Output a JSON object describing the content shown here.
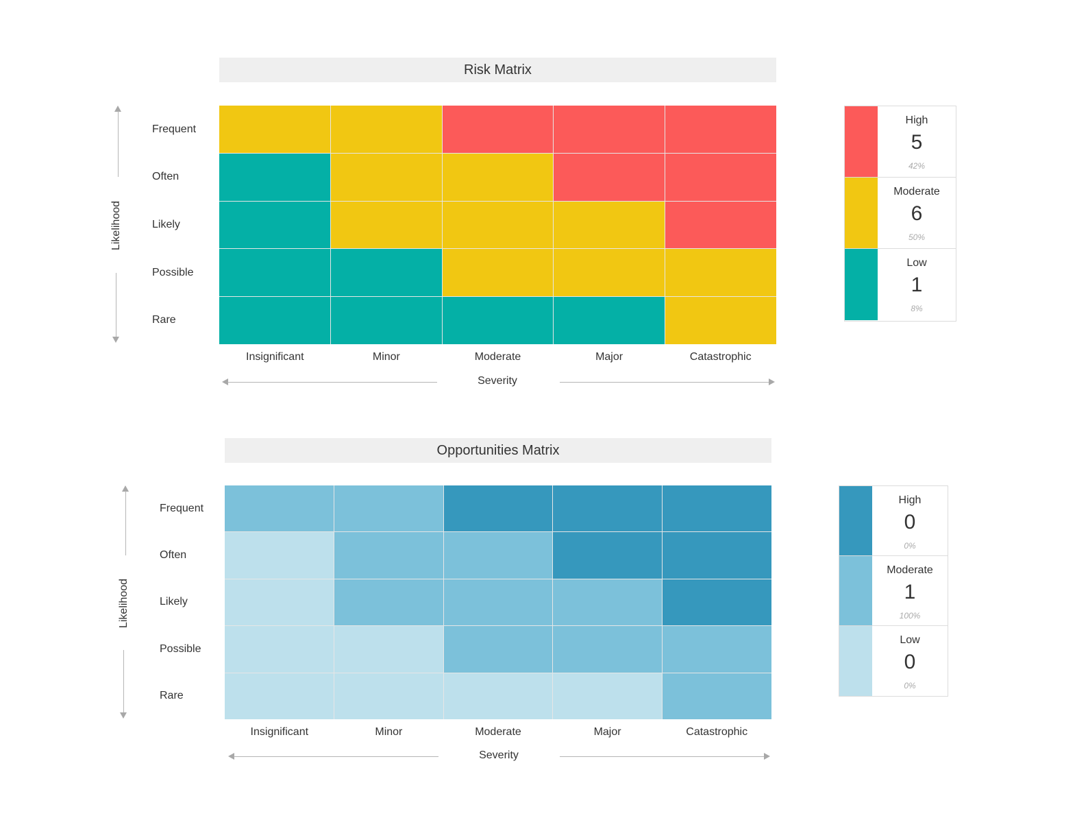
{
  "chart_data": [
    {
      "type": "heatmap",
      "title": "Risk Matrix",
      "xlabel": "Severity",
      "ylabel": "Likelihood",
      "x_categories": [
        "Insignificant",
        "Minor",
        "Moderate",
        "Major",
        "Catastrophic"
      ],
      "y_categories": [
        "Frequent",
        "Often",
        "Likely",
        "Possible",
        "Rare"
      ],
      "levels": [
        "High",
        "Moderate",
        "Low"
      ],
      "level_colors": {
        "High": "#fc5a59",
        "Moderate": "#f1c712",
        "Low": "#04b0a6"
      },
      "matrix": [
        [
          "Moderate",
          "Moderate",
          "High",
          "High",
          "High"
        ],
        [
          "Low",
          "Moderate",
          "Moderate",
          "High",
          "High"
        ],
        [
          "Low",
          "Moderate",
          "Moderate",
          "Moderate",
          "High"
        ],
        [
          "Low",
          "Low",
          "Moderate",
          "Moderate",
          "Moderate"
        ],
        [
          "Low",
          "Low",
          "Low",
          "Low",
          "Moderate"
        ]
      ],
      "legend": [
        {
          "label": "High",
          "count": "5",
          "percent": "42%"
        },
        {
          "label": "Moderate",
          "count": "6",
          "percent": "50%"
        },
        {
          "label": "Low",
          "count": "1",
          "percent": "8%"
        }
      ]
    },
    {
      "type": "heatmap",
      "title": "Opportunities Matrix",
      "xlabel": "Severity",
      "ylabel": "Likelihood",
      "x_categories": [
        "Insignificant",
        "Minor",
        "Moderate",
        "Major",
        "Catastrophic"
      ],
      "y_categories": [
        "Frequent",
        "Often",
        "Likely",
        "Possible",
        "Rare"
      ],
      "levels": [
        "High",
        "Moderate",
        "Low"
      ],
      "level_colors": {
        "High": "#3698bd",
        "Moderate": "#7cc1da",
        "Low": "#bde0ec"
      },
      "matrix": [
        [
          "Moderate",
          "Moderate",
          "High",
          "High",
          "High"
        ],
        [
          "Low",
          "Moderate",
          "Moderate",
          "High",
          "High"
        ],
        [
          "Low",
          "Moderate",
          "Moderate",
          "Moderate",
          "High"
        ],
        [
          "Low",
          "Low",
          "Moderate",
          "Moderate",
          "Moderate"
        ],
        [
          "Low",
          "Low",
          "Low",
          "Low",
          "Moderate"
        ]
      ],
      "legend": [
        {
          "label": "High",
          "count": "0",
          "percent": "0%"
        },
        {
          "label": "Moderate",
          "count": "1",
          "percent": "100%"
        },
        {
          "label": "Low",
          "count": "0",
          "percent": "0%"
        }
      ]
    }
  ]
}
